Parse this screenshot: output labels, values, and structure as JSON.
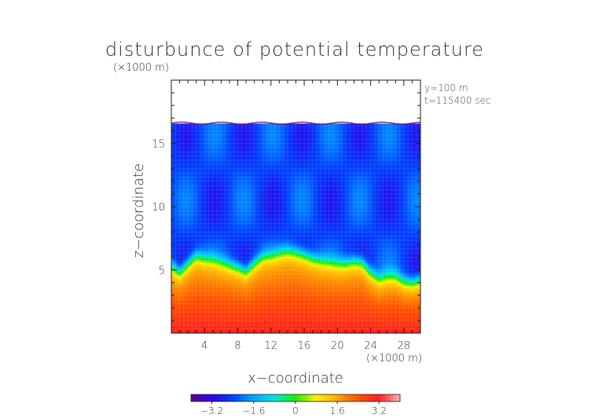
{
  "chart_data": {
    "type": "heatmap",
    "title": "disturbunce of potential temperature",
    "xlabel": "x−coordinate",
    "ylabel": "z−coordinate",
    "x_unit": "(×1000 m)",
    "y_unit": "(×1000 m)",
    "annotations": [
      "y=100 m",
      "t=115400 sec"
    ],
    "xlim": [
      0,
      30
    ],
    "ylim": [
      0,
      20
    ],
    "x_ticks": [
      4,
      8,
      12,
      16,
      20,
      24,
      28
    ],
    "y_ticks": [
      5,
      10,
      15
    ],
    "colorbar": {
      "range": [
        -4.0,
        4.0
      ],
      "ticks": [
        -3.2,
        -1.6,
        0,
        1.6,
        3.2
      ],
      "tick_labels": [
        "−3.2",
        "−1.6",
        "0",
        "1.6",
        "3.2"
      ],
      "colors": [
        "#5a0096",
        "#2d00e6",
        "#0040ff",
        "#00a6ff",
        "#00e6dc",
        "#14f000",
        "#fff000",
        "#ffaa00",
        "#ff5000",
        "#ff2020",
        "#ffb4b4"
      ]
    },
    "domain_top_km": 16.6,
    "layer_profile": {
      "x": [
        0,
        1,
        2,
        3,
        4,
        5,
        6,
        7,
        8,
        9,
        10,
        11,
        12,
        13,
        14,
        15,
        16,
        17,
        18,
        19,
        20,
        21,
        22,
        23,
        24,
        25,
        26,
        27,
        28,
        29,
        30
      ],
      "z": [
        5.4,
        4.9,
        5.6,
        6.2,
        6.0,
        5.9,
        5.7,
        5.5,
        5.3,
        5.0,
        5.6,
        6.1,
        6.2,
        6.4,
        6.6,
        6.5,
        6.3,
        6.0,
        5.8,
        5.7,
        5.6,
        5.6,
        5.8,
        5.7,
        4.9,
        4.4,
        4.6,
        4.6,
        4.2,
        4.1,
        4.3
      ]
    },
    "theta_at_surface": 3.2,
    "theta_below_layer": 1.4,
    "theta_above_layer": -2.4
  }
}
